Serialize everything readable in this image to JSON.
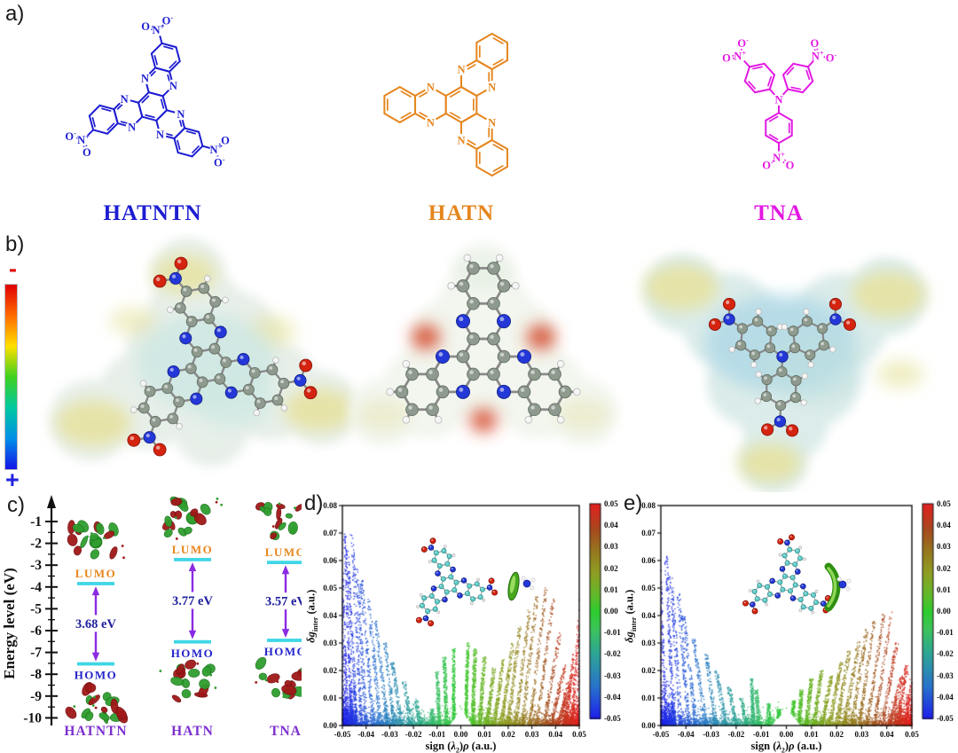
{
  "panel_labels": {
    "a": "a)",
    "b": "b)",
    "c": "c)",
    "d": "d)",
    "e": "e)"
  },
  "molecules_a": [
    {
      "name": "HATNTN",
      "color": "#1d1dd2"
    },
    {
      "name": "HATN",
      "color": "#e5861e"
    },
    {
      "name": "TNA",
      "color": "#e318e3"
    }
  ],
  "atom_labels": {
    "N": "N",
    "O": "O",
    "plus": "+",
    "minus": "-"
  },
  "esp": {
    "minus_sign": "-",
    "plus_sign": "+",
    "minus_color": "#e01010",
    "plus_color": "#2222e0",
    "colorbar_stops": [
      "#e00000",
      "#ff6a00",
      "#ffe000",
      "#3fd020",
      "#00c8a0",
      "#0090e8",
      "#1414e8"
    ]
  },
  "chart_data": [
    {
      "id": "c",
      "type": "energy-level-diagram",
      "ylabel": "Energy level (eV)",
      "ylim": [
        -10.6,
        -0.4
      ],
      "yticks": [
        -1,
        -2,
        -3,
        -4,
        -5,
        -6,
        -7,
        -8,
        -9,
        -10
      ],
      "categories": [
        "HATNTN",
        "HATN",
        "TNA"
      ],
      "series": [
        {
          "name": "LUMO",
          "values": [
            -3.85,
            -2.75,
            -2.88
          ]
        },
        {
          "name": "HOMO",
          "values": [
            -7.53,
            -6.52,
            -6.45
          ]
        }
      ],
      "gap_labels": [
        "3.68 eV",
        "3.77 eV",
        "3.57 eV"
      ],
      "level_names": {
        "lumo": "LUMO",
        "homo": "HOMO"
      },
      "colors": {
        "lumo_text": "#e8861c",
        "homo_text": "#2323cc",
        "gap_text": "#20209c",
        "bar": "#3fd6e6",
        "arrow": "#8a2be2",
        "name": "#7b2fd0",
        "axis": "#111111"
      }
    },
    {
      "id": "d",
      "type": "scatter",
      "xlabel_parts": [
        {
          "t": "sign ("
        },
        {
          "t": "λ",
          "i": 1
        },
        {
          "t": "2",
          "s": 1
        },
        {
          "t": ")"
        },
        {
          "t": "ρ",
          "i": 1
        },
        {
          "t": " (a.u.)"
        }
      ],
      "ylabel_main": "δg",
      "ylabel_sub": "inter",
      "ylabel_unit": " (a.u.)",
      "xlim": [
        -0.05,
        0.05
      ],
      "ylim": [
        0.0,
        0.08
      ],
      "xtick_labels": [
        "-0.05",
        "-0.04",
        "-0.03",
        "-0.02",
        "-0.01",
        "0.00",
        "0.01",
        "0.02",
        "0.03",
        "0.04",
        "0.05"
      ],
      "ytick_labels": [
        "0.00",
        "0.01",
        "0.02",
        "0.03",
        "0.04",
        "0.05",
        "0.06",
        "0.07",
        "0.08"
      ],
      "colorbar": {
        "min": -0.05,
        "max": 0.05,
        "tick_labels": [
          "0.05",
          "0.04",
          "0.03",
          "0.02",
          "0.01",
          "0.00",
          "-0.01",
          "-0.02",
          "-0.03",
          "-0.04",
          "-0.05"
        ]
      },
      "colormap_stops": [
        [
          -0.05,
          "#1e1eea"
        ],
        [
          -0.035,
          "#2873cc"
        ],
        [
          -0.02,
          "#2da496"
        ],
        [
          -0.008,
          "#3cc45a"
        ],
        [
          0,
          "#2ecc2e"
        ],
        [
          0.008,
          "#64b929"
        ],
        [
          0.018,
          "#8f9e23"
        ],
        [
          0.028,
          "#96781f"
        ],
        [
          0.038,
          "#a64a1e"
        ],
        [
          0.05,
          "#e42020"
        ]
      ],
      "baseline": {
        "n": 2600,
        "scale": 0.0016
      },
      "edge_bands": [
        {
          "x0": -0.05,
          "x1": -0.044,
          "n": 520,
          "scale": 0.004
        },
        {
          "x0": 0.043,
          "x1": 0.05,
          "n": 460,
          "scale": 0.0035
        }
      ],
      "notch": {
        "half_width": 0.005,
        "apex": 0.006
      },
      "spikes": [
        [
          -0.0498,
          0.08,
          -0.002,
          0.0006,
          340
        ],
        [
          -0.048,
          0.077,
          -0.003,
          0.0006,
          260
        ],
        [
          -0.046,
          0.07,
          -0.003,
          0.0006,
          220
        ],
        [
          -0.044,
          0.064,
          -0.004,
          0.0006,
          200
        ],
        [
          -0.042,
          0.07,
          -0.004,
          0.0006,
          180
        ],
        [
          -0.04,
          0.058,
          -0.004,
          0.0007,
          190
        ],
        [
          -0.037,
          0.053,
          -0.005,
          0.0007,
          180
        ],
        [
          -0.034,
          0.046,
          -0.005,
          0.0007,
          170
        ],
        [
          -0.031,
          0.038,
          -0.005,
          0.0007,
          160
        ],
        [
          -0.028,
          0.03,
          -0.004,
          0.0007,
          150
        ],
        [
          -0.025,
          0.023,
          -0.004,
          0.0007,
          140
        ],
        [
          -0.021,
          0.016,
          -0.003,
          0.0008,
          120
        ],
        [
          -0.017,
          0.01,
          -0.002,
          0.0008,
          100
        ],
        [
          -0.012,
          0.006,
          0.0,
          0.0008,
          90
        ],
        [
          -0.009,
          0.02,
          -0.001,
          0.0007,
          200
        ],
        [
          -0.006,
          0.025,
          -0.001,
          0.0007,
          260
        ],
        [
          -0.003,
          0.028,
          0.0,
          0.0006,
          300
        ],
        [
          0.002,
          0.03,
          0.001,
          0.0006,
          320
        ],
        [
          0.005,
          0.028,
          0.001,
          0.0007,
          300
        ],
        [
          0.008,
          0.025,
          0.002,
          0.0007,
          260
        ],
        [
          0.011,
          0.021,
          0.003,
          0.0007,
          220
        ],
        [
          0.014,
          0.024,
          0.004,
          0.0007,
          200
        ],
        [
          0.017,
          0.03,
          0.005,
          0.0007,
          200
        ],
        [
          0.02,
          0.036,
          0.005,
          0.0007,
          190
        ],
        [
          0.023,
          0.042,
          0.006,
          0.0007,
          180
        ],
        [
          0.026,
          0.047,
          0.006,
          0.0007,
          170
        ],
        [
          0.029,
          0.05,
          0.007,
          0.0006,
          170
        ],
        [
          0.032,
          0.046,
          0.007,
          0.0006,
          160
        ],
        [
          0.035,
          0.034,
          0.007,
          0.0007,
          150
        ],
        [
          0.038,
          0.022,
          0.006,
          0.0007,
          150
        ],
        [
          0.041,
          0.016,
          0.005,
          0.0007,
          160
        ],
        [
          0.044,
          0.026,
          0.004,
          0.0007,
          150
        ],
        [
          0.047,
          0.04,
          0.003,
          0.0006,
          130
        ],
        [
          0.0495,
          0.05,
          0.001,
          0.0005,
          120
        ]
      ]
    },
    {
      "id": "e",
      "type": "scatter",
      "xlabel_parts": [
        {
          "t": "sign ("
        },
        {
          "t": "λ",
          "i": 1
        },
        {
          "t": "2",
          "s": 1
        },
        {
          "t": ")"
        },
        {
          "t": "ρ",
          "i": 1
        },
        {
          "t": " (a.u.)"
        }
      ],
      "ylabel_main": "δg",
      "ylabel_sub": "inter",
      "ylabel_unit": " (a.u.)",
      "xlim": [
        -0.05,
        0.05
      ],
      "ylim": [
        0.0,
        0.08
      ],
      "xtick_labels": [
        "-0.05",
        "-0.04",
        "-0.03",
        "-0.02",
        "-0.01",
        "0.00",
        "0.01",
        "0.02",
        "0.03",
        "0.04",
        "0.05"
      ],
      "ytick_labels": [
        "0.00",
        "0.01",
        "0.02",
        "0.03",
        "0.04",
        "0.05",
        "0.06",
        "0.07",
        "0.08"
      ],
      "colorbar": {
        "min": -0.05,
        "max": 0.05,
        "tick_labels": [
          "0.05",
          "0.04",
          "0.03",
          "0.02",
          "0.01",
          "0.00",
          "-0.01",
          "-0.02",
          "-0.03",
          "-0.04",
          "-0.05"
        ]
      },
      "colormap_stops": [
        [
          -0.05,
          "#1e1eea"
        ],
        [
          -0.035,
          "#2873cc"
        ],
        [
          -0.02,
          "#2da496"
        ],
        [
          -0.008,
          "#3cc45a"
        ],
        [
          0,
          "#2ecc2e"
        ],
        [
          0.008,
          "#64b929"
        ],
        [
          0.018,
          "#8f9e23"
        ],
        [
          0.028,
          "#96781f"
        ],
        [
          0.038,
          "#a64a1e"
        ],
        [
          0.05,
          "#e42020"
        ]
      ],
      "baseline": {
        "n": 2400,
        "scale": 0.0015
      },
      "edge_bands": [
        {
          "x0": -0.05,
          "x1": -0.044,
          "n": 480,
          "scale": 0.0038
        },
        {
          "x0": 0.043,
          "x1": 0.05,
          "n": 420,
          "scale": 0.003
        }
      ],
      "notch": {
        "half_width": 0.006,
        "apex": 0.006
      },
      "spikes": [
        [
          -0.0498,
          0.078,
          -0.002,
          0.0006,
          310
        ],
        [
          -0.048,
          0.07,
          -0.003,
          0.0006,
          230
        ],
        [
          -0.045,
          0.062,
          -0.003,
          0.0006,
          200
        ],
        [
          -0.042,
          0.055,
          -0.004,
          0.0007,
          185
        ],
        [
          -0.039,
          0.048,
          -0.004,
          0.0007,
          175
        ],
        [
          -0.036,
          0.04,
          -0.005,
          0.0007,
          165
        ],
        [
          -0.032,
          0.032,
          -0.005,
          0.0007,
          155
        ],
        [
          -0.028,
          0.026,
          -0.004,
          0.0007,
          145
        ],
        [
          -0.024,
          0.02,
          -0.004,
          0.0007,
          135
        ],
        [
          -0.02,
          0.014,
          -0.003,
          0.0008,
          115
        ],
        [
          -0.016,
          0.01,
          -0.002,
          0.0007,
          110
        ],
        [
          -0.013,
          0.017,
          -0.001,
          0.0006,
          230
        ],
        [
          -0.011,
          0.013,
          -0.001,
          0.0007,
          170
        ],
        [
          -0.007,
          0.008,
          0.0,
          0.0007,
          120
        ],
        [
          -0.003,
          0.006,
          0.0,
          0.0007,
          150
        ],
        [
          0.002,
          0.009,
          0.001,
          0.0007,
          180
        ],
        [
          0.005,
          0.013,
          0.001,
          0.0007,
          220
        ],
        [
          0.008,
          0.017,
          0.002,
          0.0007,
          240
        ],
        [
          0.011,
          0.02,
          0.003,
          0.0007,
          220
        ],
        [
          0.014,
          0.018,
          0.004,
          0.0007,
          190
        ],
        [
          0.017,
          0.023,
          0.005,
          0.0007,
          185
        ],
        [
          0.02,
          0.027,
          0.005,
          0.0007,
          180
        ],
        [
          0.023,
          0.031,
          0.006,
          0.0007,
          175
        ],
        [
          0.026,
          0.035,
          0.006,
          0.0007,
          170
        ],
        [
          0.029,
          0.038,
          0.006,
          0.0006,
          165
        ],
        [
          0.032,
          0.041,
          0.007,
          0.0006,
          160
        ],
        [
          0.035,
          0.042,
          0.007,
          0.0006,
          155
        ],
        [
          0.038,
          0.03,
          0.006,
          0.0007,
          150
        ],
        [
          0.041,
          0.018,
          0.005,
          0.0007,
          150
        ],
        [
          0.044,
          0.022,
          0.004,
          0.0007,
          140
        ],
        [
          0.047,
          0.016,
          0.003,
          0.0007,
          130
        ],
        [
          0.0495,
          0.012,
          0.001,
          0.0005,
          140
        ]
      ]
    }
  ]
}
